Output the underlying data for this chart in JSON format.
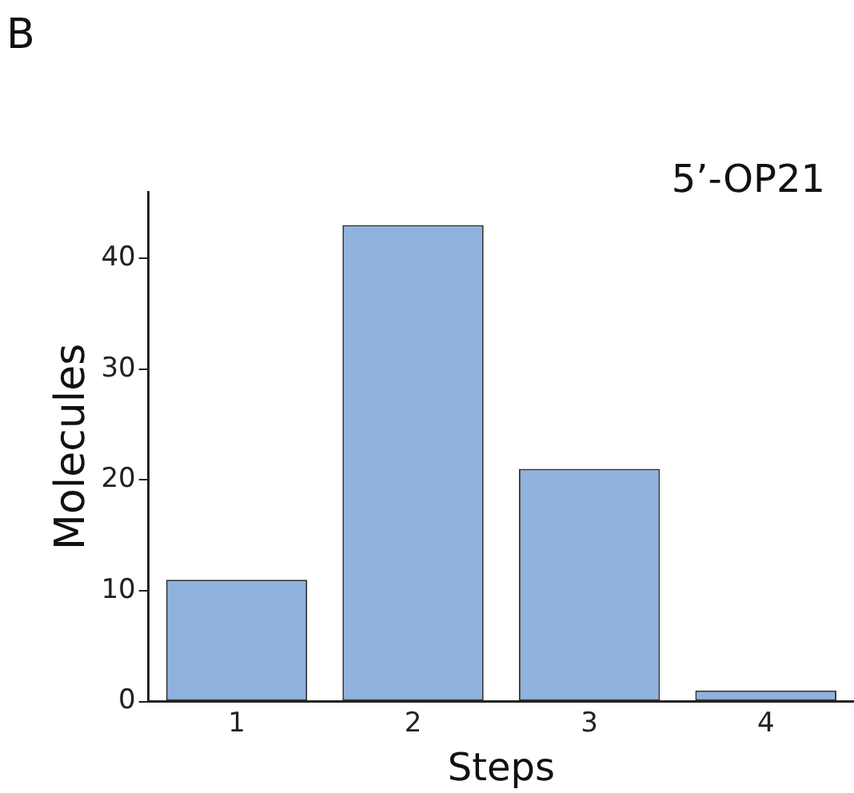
{
  "chart_data": {
    "type": "bar",
    "title": "5’-OP21",
    "annotations": [
      "B"
    ],
    "xlabel": "Steps",
    "ylabel": "Molecules",
    "categories": [
      "1",
      "2",
      "3",
      "4"
    ],
    "values": [
      11,
      43,
      21,
      1
    ],
    "color": "#8fb2de",
    "ylim": [
      0,
      46
    ],
    "yticks": [
      0,
      10,
      20,
      30,
      40
    ],
    "grid": false,
    "legend": false
  }
}
